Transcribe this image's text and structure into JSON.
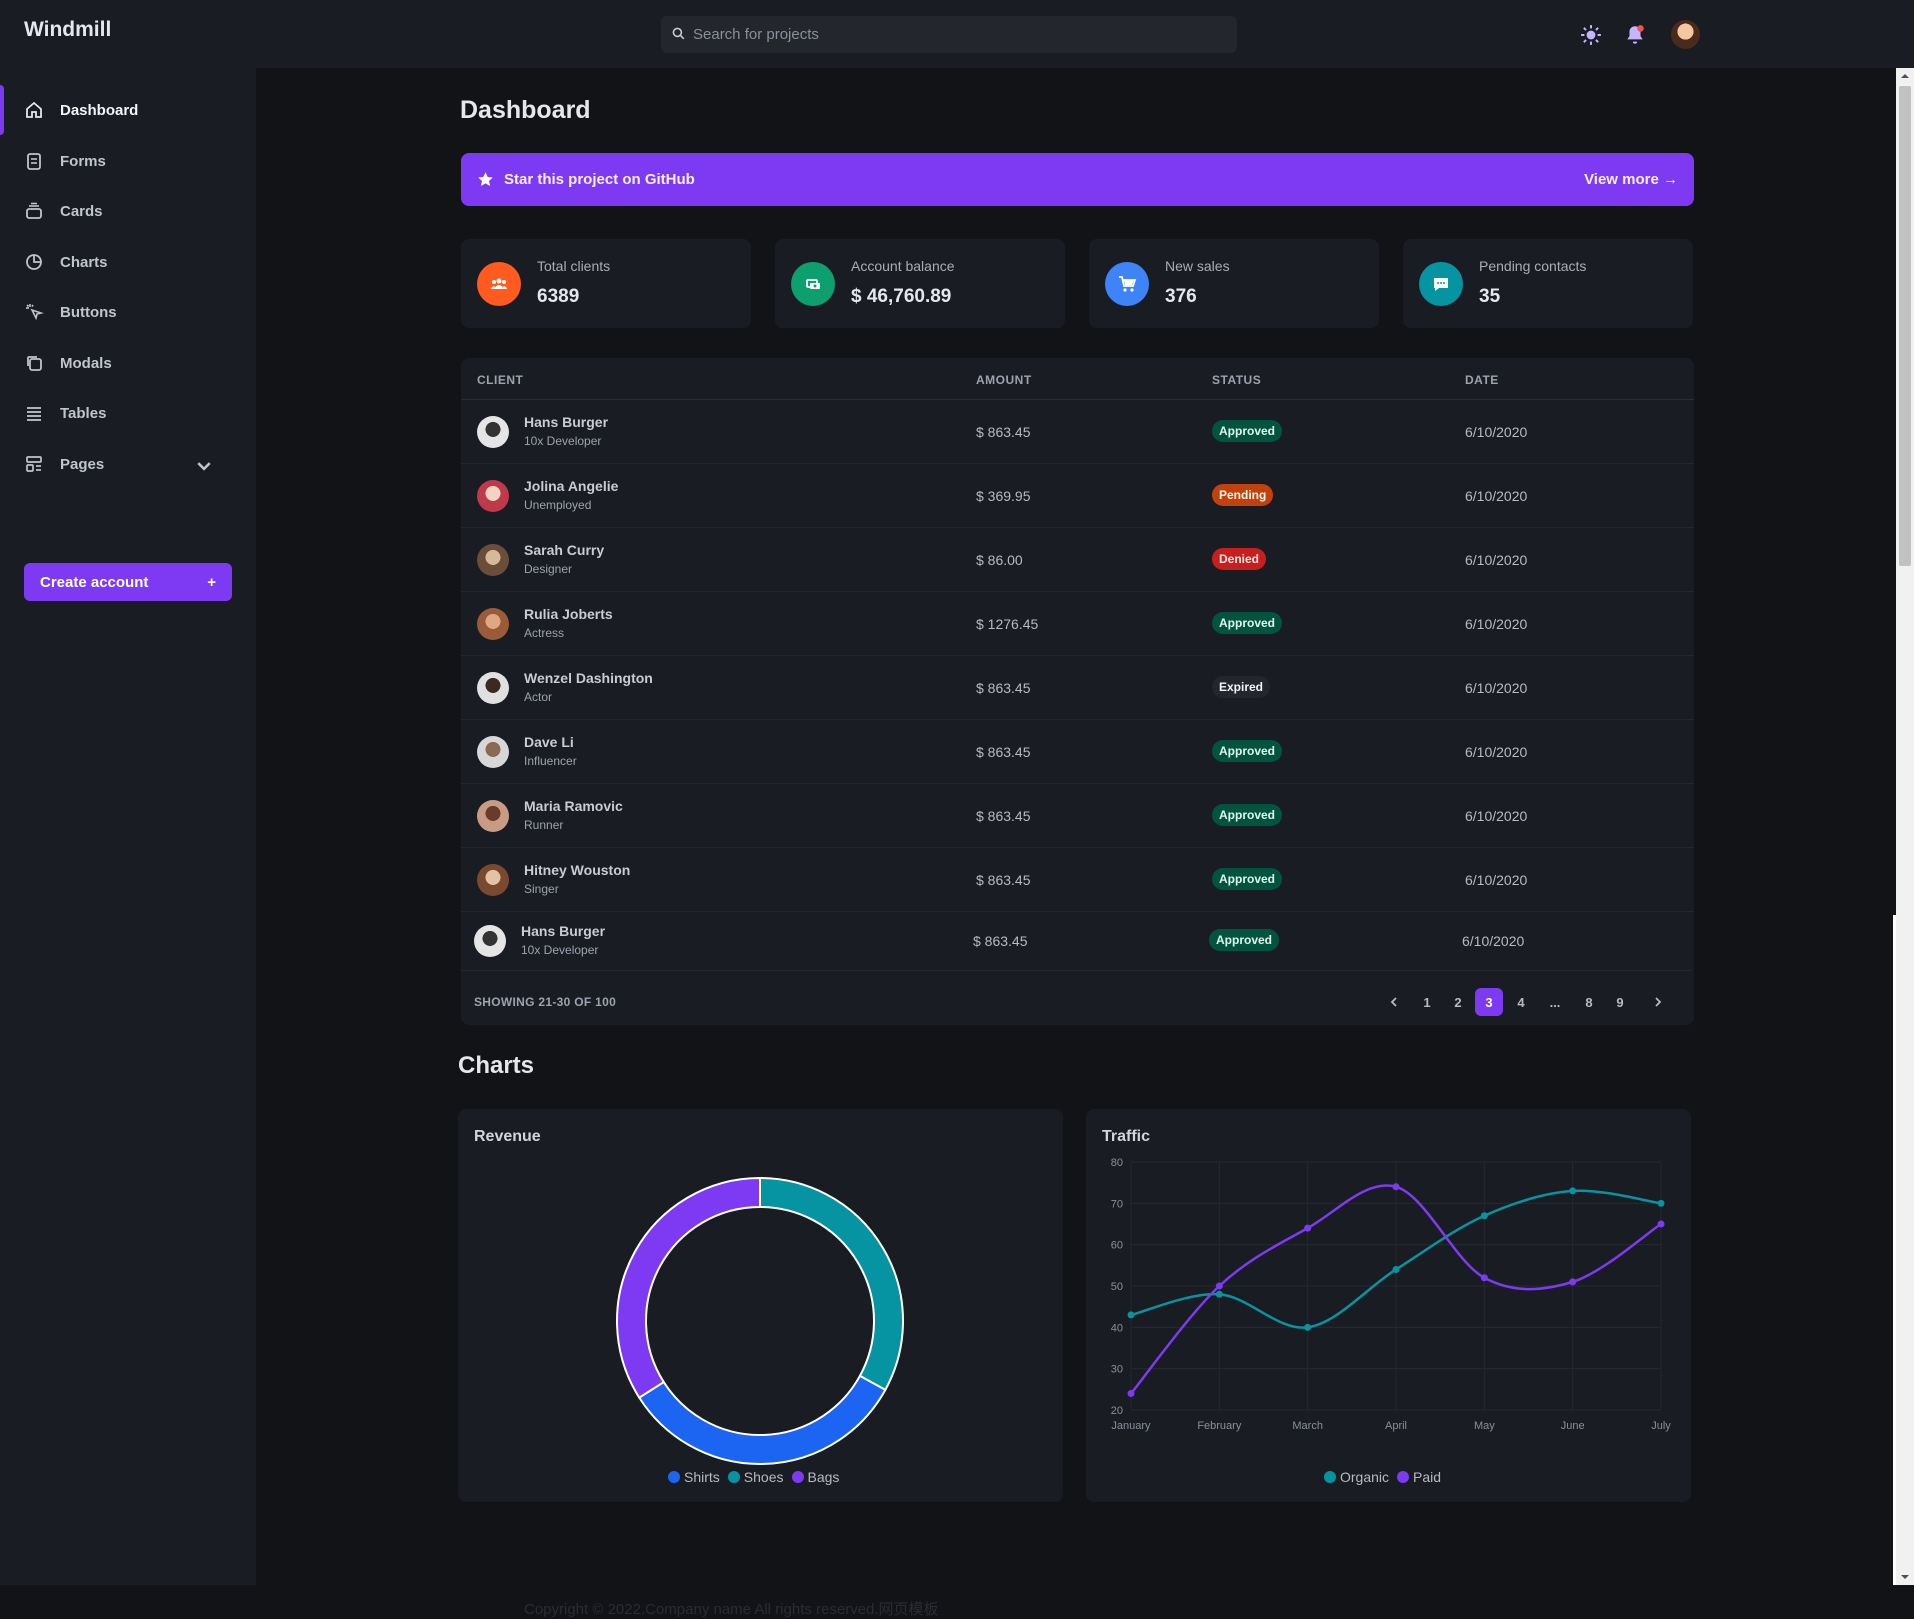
{
  "brand": "Windmill",
  "search": {
    "placeholder": "Search for projects"
  },
  "icons": {
    "theme": "sun-icon",
    "notifications": "bell-icon",
    "profile": "avatar"
  },
  "sidebar": {
    "items": [
      {
        "label": "Dashboard",
        "icon": "home-icon",
        "active": true
      },
      {
        "label": "Forms",
        "icon": "clipboard-icon"
      },
      {
        "label": "Cards",
        "icon": "cards-icon"
      },
      {
        "label": "Charts",
        "icon": "pie-chart-icon"
      },
      {
        "label": "Buttons",
        "icon": "cursor-click-icon"
      },
      {
        "label": "Modals",
        "icon": "modals-icon"
      },
      {
        "label": "Tables",
        "icon": "table-icon"
      },
      {
        "label": "Pages",
        "icon": "pages-icon"
      }
    ],
    "create_account": "Create account",
    "create_plus": "+"
  },
  "page_title": "Dashboard",
  "banner": {
    "text": "Star this project on GitHub",
    "link": "View more →"
  },
  "cards": [
    {
      "label": "Total clients",
      "value": "6389",
      "color": "#ff5a1f",
      "icon": "users-icon"
    },
    {
      "label": "Account balance",
      "value": "$ 46,760.89",
      "color": "#0e9f6e",
      "icon": "money-icon"
    },
    {
      "label": "New sales",
      "value": "376",
      "color": "#3f83f8",
      "icon": "cart-icon"
    },
    {
      "label": "Pending contacts",
      "value": "35",
      "color": "#0694a2",
      "icon": "chat-icon"
    }
  ],
  "table": {
    "headers": [
      "CLIENT",
      "AMOUNT",
      "STATUS",
      "DATE"
    ],
    "rows": [
      {
        "name": "Hans Burger",
        "job": "10x Developer",
        "amount": "$ 863.45",
        "status": "Approved",
        "date": "6/10/2020"
      },
      {
        "name": "Jolina Angelie",
        "job": "Unemployed",
        "amount": "$ 369.95",
        "status": "Pending",
        "date": "6/10/2020"
      },
      {
        "name": "Sarah Curry",
        "job": "Designer",
        "amount": "$ 86.00",
        "status": "Denied",
        "date": "6/10/2020"
      },
      {
        "name": "Rulia Joberts",
        "job": "Actress",
        "amount": "$ 1276.45",
        "status": "Approved",
        "date": "6/10/2020"
      },
      {
        "name": "Wenzel Dashington",
        "job": "Actor",
        "amount": "$ 863.45",
        "status": "Expired",
        "date": "6/10/2020"
      },
      {
        "name": "Dave Li",
        "job": "Influencer",
        "amount": "$ 863.45",
        "status": "Approved",
        "date": "6/10/2020"
      },
      {
        "name": "Maria Ramovic",
        "job": "Runner",
        "amount": "$ 863.45",
        "status": "Approved",
        "date": "6/10/2020"
      },
      {
        "name": "Hitney Wouston",
        "job": "Singer",
        "amount": "$ 863.45",
        "status": "Approved",
        "date": "6/10/2020"
      },
      {
        "name": "Hans Burger",
        "job": "10x Developer",
        "amount": "$ 863.45",
        "status": "Approved",
        "date": "6/10/2020"
      }
    ],
    "showing": "SHOWING 21-30 OF 100",
    "pages": [
      "1",
      "2",
      "3",
      "4",
      "...",
      "8",
      "9"
    ],
    "current_page": "3"
  },
  "charts_title": "Charts",
  "chart_data": [
    {
      "type": "pie",
      "title": "Revenue",
      "categories": [
        "Shirts",
        "Shoes",
        "Bags"
      ],
      "values": [
        33,
        33,
        34
      ],
      "colors": [
        "#1c64f2",
        "#0694a2",
        "#7e3af2"
      ]
    },
    {
      "type": "line",
      "title": "Traffic",
      "x": [
        "January",
        "February",
        "March",
        "April",
        "May",
        "June",
        "July"
      ],
      "ylim": [
        20,
        80
      ],
      "yticks": [
        "20",
        "30",
        "40",
        "50",
        "60",
        "70",
        "80"
      ],
      "series": [
        {
          "name": "Organic",
          "values": [
            43,
            48,
            40,
            54,
            67,
            73,
            70
          ],
          "color": "#0694a2"
        },
        {
          "name": "Paid",
          "values": [
            24,
            50,
            64,
            74,
            52,
            51,
            65
          ],
          "color": "#7e3af2"
        }
      ]
    }
  ],
  "footer": "Copyright © 2022.Company name All rights reserved.网页模板"
}
